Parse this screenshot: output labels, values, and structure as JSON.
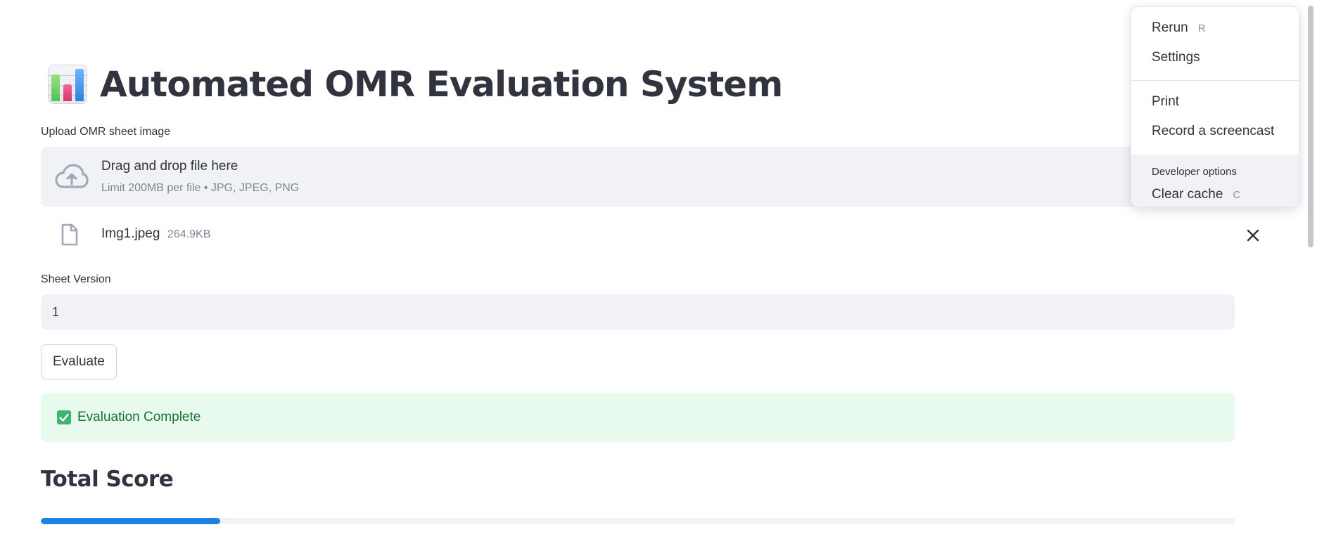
{
  "header": {
    "title": "Automated OMR Evaluation System",
    "title_icon": "bar-chart-emoji-icon"
  },
  "uploader": {
    "label": "Upload OMR sheet image",
    "drop_text": "Drag and drop file here",
    "limit_text": "Limit 200MB per file • JPG, JPEG, PNG",
    "upload_icon": "cloud-upload-icon",
    "file": {
      "name": "Img1.jpeg",
      "size": "264.9KB",
      "icon": "file-icon",
      "remove_icon": "close-icon"
    }
  },
  "sheet_version": {
    "label": "Sheet Version",
    "value": "1"
  },
  "actions": {
    "evaluate_label": "Evaluate"
  },
  "status": {
    "message": "Evaluation Complete",
    "icon": "check-box-icon",
    "color": "#177233",
    "background": "#e8f9ee"
  },
  "score": {
    "heading": "Total Score",
    "progress_percent": 15,
    "bar_color": "#1c83e1"
  },
  "main_menu": {
    "items": [
      {
        "label": "Rerun",
        "shortcut": "R"
      },
      {
        "label": "Settings",
        "shortcut": ""
      },
      {
        "label": "Print",
        "shortcut": ""
      },
      {
        "label": "Record a screencast",
        "shortcut": ""
      }
    ],
    "developer": {
      "label": "Developer options",
      "items": [
        {
          "label": "Clear cache",
          "shortcut": "C"
        }
      ]
    }
  }
}
